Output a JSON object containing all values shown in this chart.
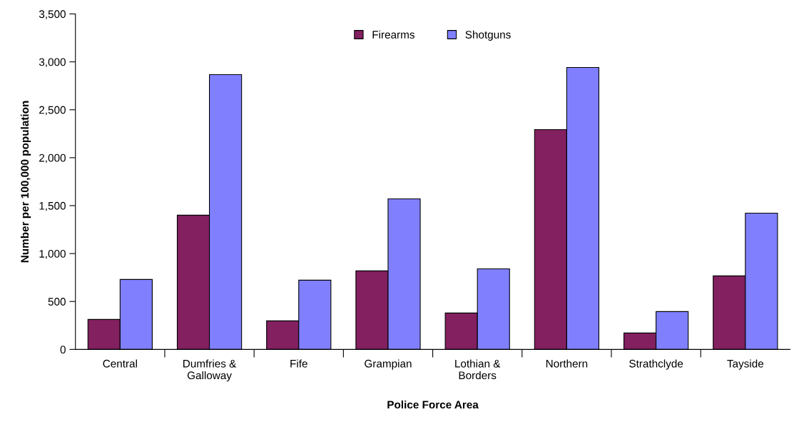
{
  "chart_data": {
    "type": "bar",
    "xlabel": "Police Force Area",
    "ylabel": "Number per 100,000 population",
    "categories": [
      "Central",
      "Dumfries &\nGalloway",
      "Fife",
      "Grampian",
      "Lothian &\nBorders",
      "Northern",
      "Strathclyde",
      "Tayside"
    ],
    "series": [
      {
        "name": "Firearms",
        "color": "#822060",
        "values": [
          313,
          1400,
          298,
          819,
          380,
          2293,
          171,
          767
        ]
      },
      {
        "name": "Shotguns",
        "color": "#8080ff",
        "values": [
          730,
          2867,
          722,
          1571,
          841,
          2941,
          395,
          1422
        ]
      }
    ],
    "ylim": [
      0,
      3500
    ],
    "yticks": [
      0,
      {
        "value": 500,
        "label": "500"
      },
      {
        "value": 1000,
        "label": "1,000"
      },
      {
        "value": 1500,
        "label": "1,500"
      },
      {
        "value": 2000,
        "label": "2,000"
      },
      {
        "value": 2500,
        "label": "2,500"
      },
      {
        "value": 3000,
        "label": "3,000"
      },
      {
        "value": 3500,
        "label": "3,500"
      }
    ],
    "grid": false,
    "legend": "top"
  }
}
